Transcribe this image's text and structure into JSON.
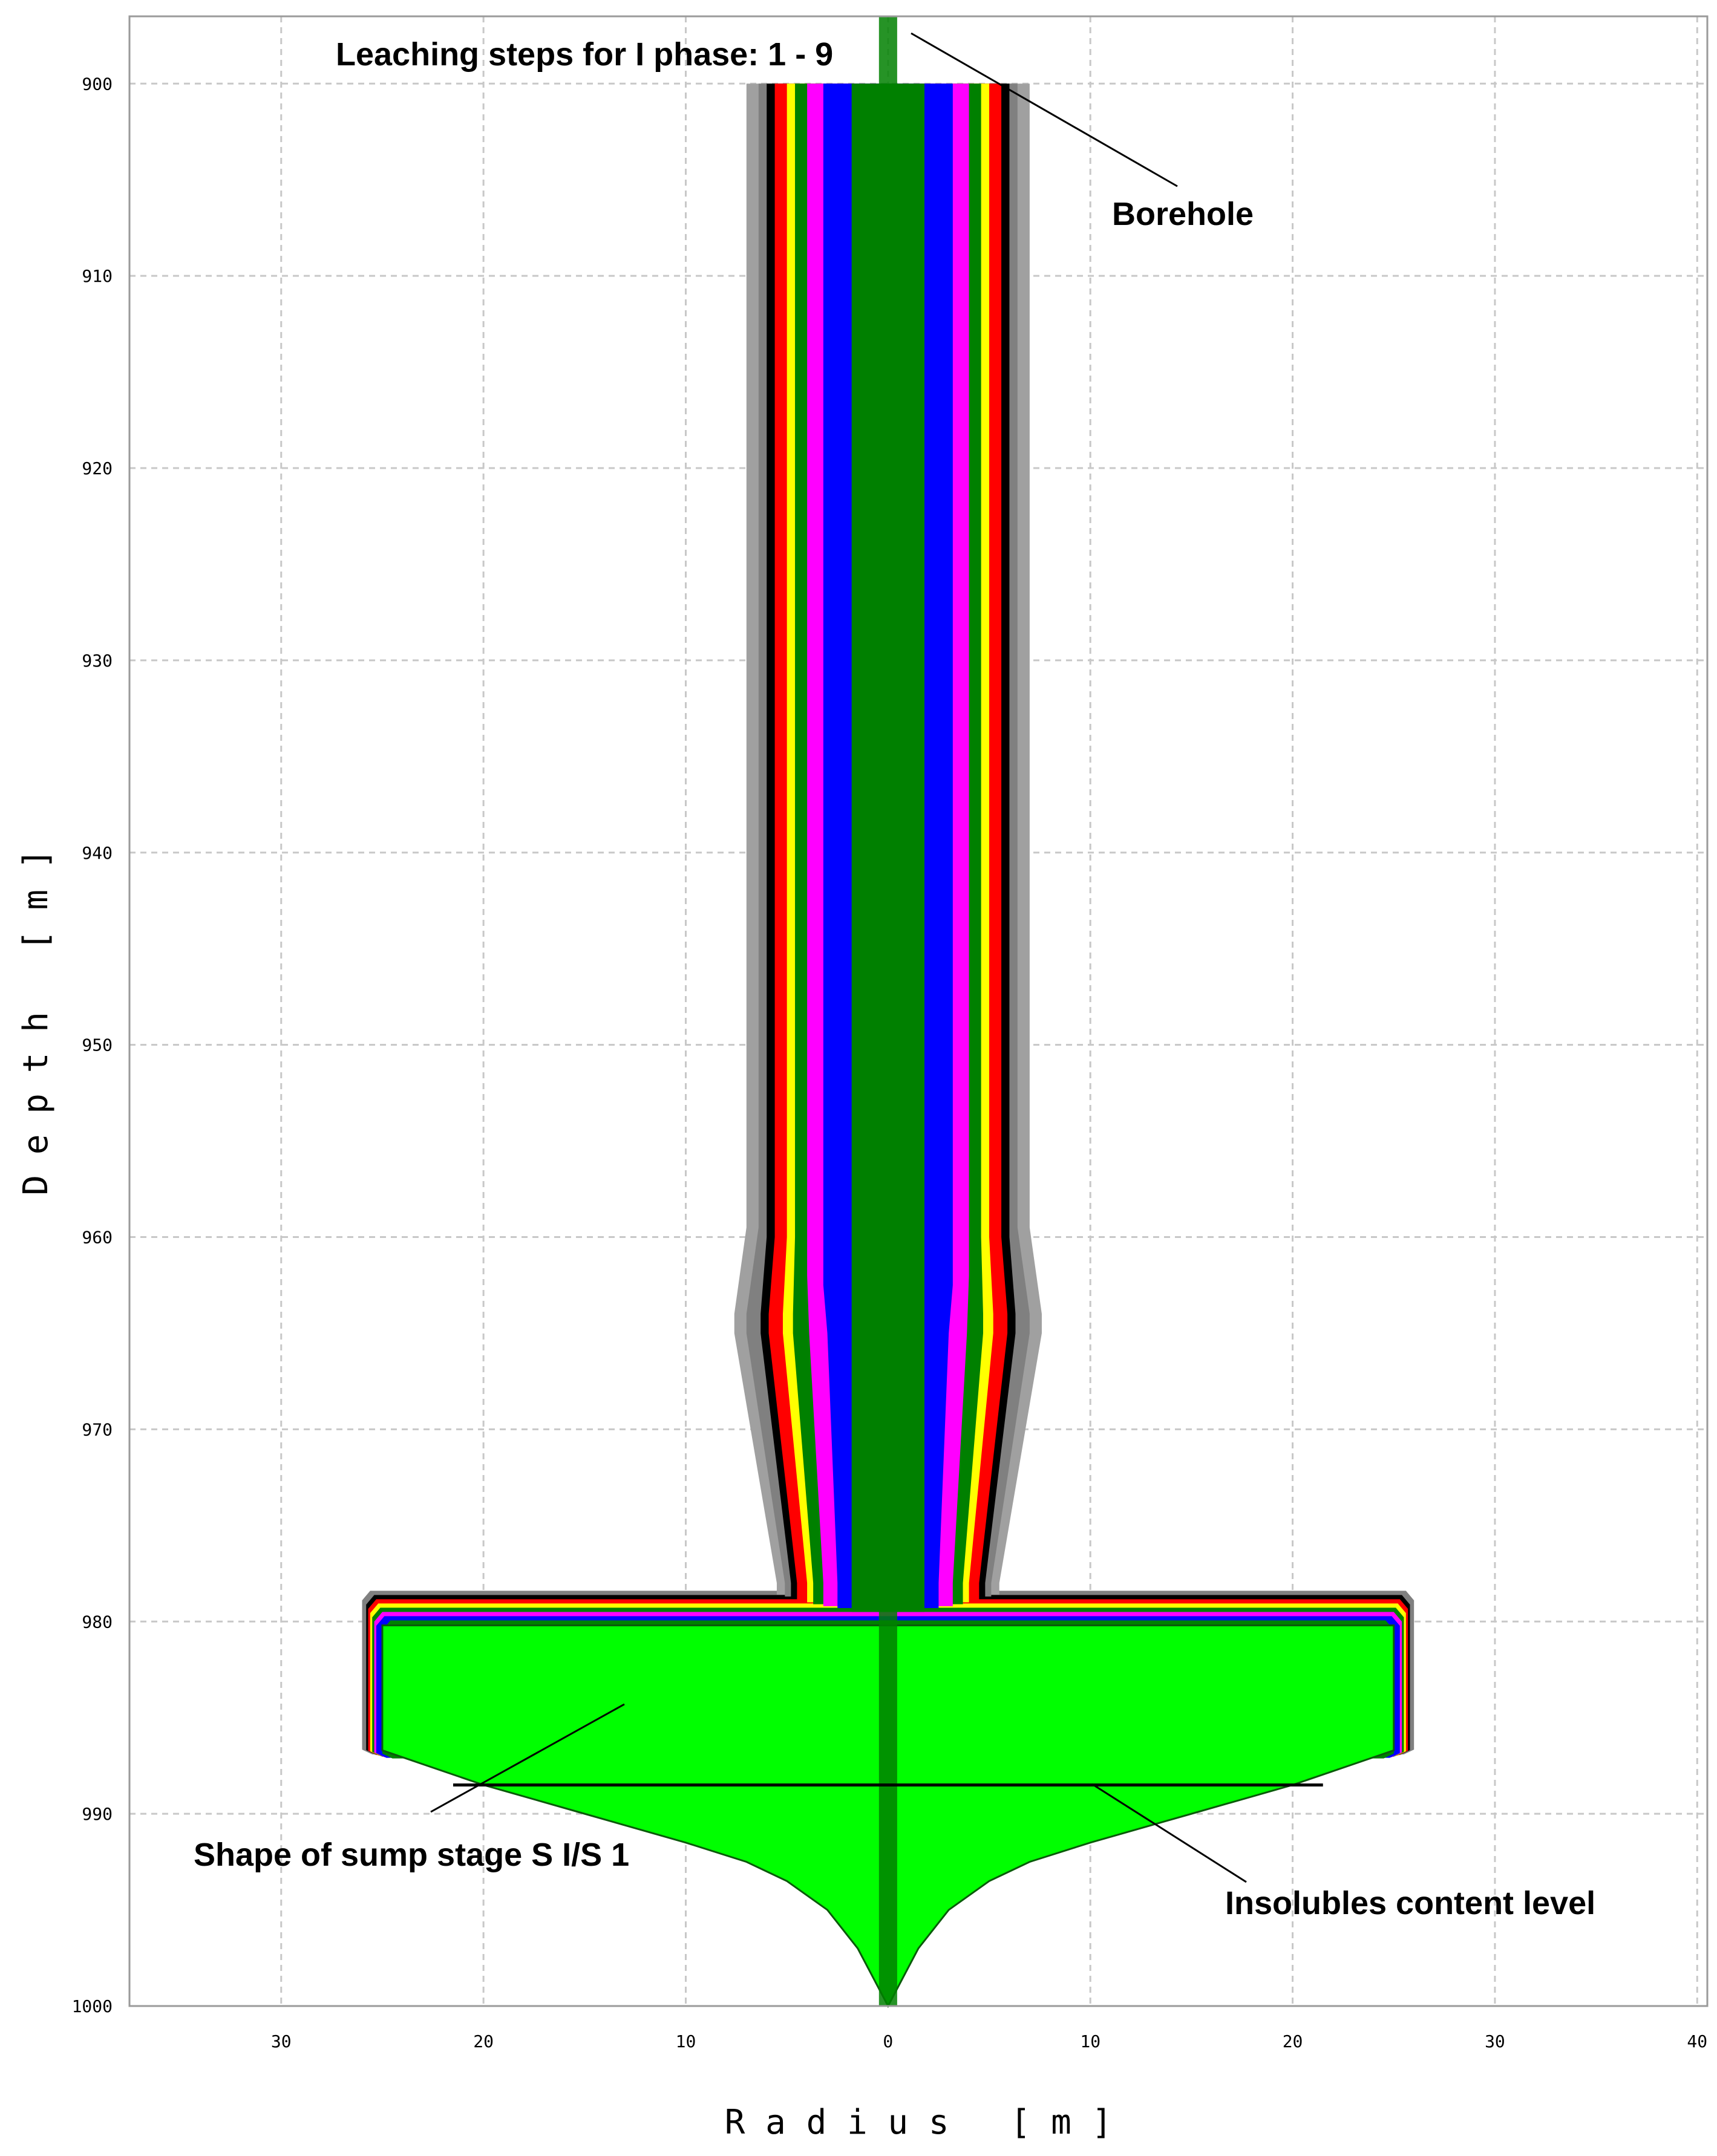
{
  "chart_data": {
    "type": "area",
    "title": "",
    "xlabel": "R a d i u s   [ m ]",
    "ylabel": "D e p t h   [ m ]",
    "xlim": [
      -37.5,
      40.5
    ],
    "ylim": [
      896.5,
      1000
    ],
    "y_inverted": true,
    "grid": true,
    "x_ticks": [
      -30,
      -20,
      -10,
      0,
      10,
      20,
      30,
      40
    ],
    "x_tick_labels": [
      "30",
      "20",
      "10",
      "0",
      "10",
      "20",
      "30",
      "40"
    ],
    "y_ticks": [
      900,
      910,
      920,
      930,
      940,
      950,
      960,
      970,
      980,
      990,
      1000
    ],
    "y_tick_labels": [
      "900",
      "910",
      "920",
      "930",
      "940",
      "950",
      "960",
      "970",
      "980",
      "990",
      "1000"
    ],
    "layer_colors": [
      "#008000",
      "#0000ff",
      "#ff00ff",
      "#008000",
      "#ffff00",
      "#ff0000",
      "#000000",
      "#808080",
      "#a0a0a0"
    ],
    "upper_cavern_layers": [
      {
        "color": "#a0a0a0",
        "profile": [
          [
            900,
            7.0
          ],
          [
            959.5,
            7.0
          ],
          [
            964,
            7.6
          ],
          [
            965,
            7.6
          ],
          [
            978,
            5.5
          ],
          [
            978.6,
            5.5
          ]
        ]
      },
      {
        "color": "#808080",
        "profile": [
          [
            900,
            6.4
          ],
          [
            959.5,
            6.4
          ],
          [
            964,
            7.0
          ],
          [
            965,
            7.0
          ],
          [
            978,
            5.1
          ],
          [
            978.7,
            5.1
          ]
        ]
      },
      {
        "color": "#000000",
        "profile": [
          [
            900,
            6.0
          ],
          [
            960,
            6.0
          ],
          [
            964,
            6.3
          ],
          [
            965,
            6.3
          ],
          [
            978,
            4.8
          ],
          [
            978.8,
            4.8
          ]
        ]
      },
      {
        "color": "#ff0000",
        "profile": [
          [
            900,
            5.6
          ],
          [
            960,
            5.6
          ],
          [
            964,
            5.9
          ],
          [
            965,
            5.9
          ],
          [
            978,
            4.5
          ],
          [
            978.9,
            4.5
          ]
        ]
      },
      {
        "color": "#ffff00",
        "profile": [
          [
            900,
            5.0
          ],
          [
            960,
            5.0
          ],
          [
            964,
            5.2
          ],
          [
            965,
            5.2
          ],
          [
            978,
            4.0
          ],
          [
            979,
            4.0
          ]
        ]
      },
      {
        "color": "#008000",
        "profile": [
          [
            900,
            4.6
          ],
          [
            960,
            4.6
          ],
          [
            964,
            4.7
          ],
          [
            965,
            4.7
          ],
          [
            978,
            3.7
          ],
          [
            979.1,
            3.7
          ]
        ]
      },
      {
        "color": "#ff00ff",
        "profile": [
          [
            900,
            4.0
          ],
          [
            962,
            4.0
          ],
          [
            965,
            3.9
          ],
          [
            978,
            3.2
          ],
          [
            979.2,
            3.2
          ]
        ]
      },
      {
        "color": "#0000ff",
        "profile": [
          [
            900,
            3.2
          ],
          [
            962.5,
            3.2
          ],
          [
            965,
            3.0
          ],
          [
            978,
            2.5
          ],
          [
            979.3,
            2.5
          ]
        ]
      },
      {
        "color": "#008000",
        "profile": [
          [
            900,
            1.8
          ],
          [
            979.5,
            1.8
          ]
        ]
      }
    ],
    "sump_rims": [
      {
        "color": "#808080",
        "radius": 26.0
      },
      {
        "color": "#000000",
        "radius": 25.8
      },
      {
        "color": "#ff0000",
        "radius": 25.7
      },
      {
        "color": "#ffff00",
        "radius": 25.6
      },
      {
        "color": "#008000",
        "radius": 25.5
      },
      {
        "color": "#ff00ff",
        "radius": 25.4
      },
      {
        "color": "#0000ff",
        "radius": 25.3
      },
      {
        "color": "#008000",
        "radius": 25.0
      }
    ],
    "sump_shape": {
      "color": "#00ff00",
      "profile": [
        [
          980.2,
          25.0
        ],
        [
          986.7,
          25.0
        ],
        [
          988.5,
          20.0
        ],
        [
          990,
          15.0
        ],
        [
          991.5,
          10.0
        ],
        [
          992.5,
          7.0
        ],
        [
          993.5,
          5.0
        ],
        [
          995,
          3.0
        ],
        [
          997,
          1.5
        ],
        [
          999,
          0.5
        ],
        [
          1000,
          0
        ]
      ]
    },
    "borehole": {
      "color": "#008000",
      "radius": 0.45,
      "top": 896.5,
      "bottom": 1000
    },
    "insolubles_level": {
      "depth": 988.5,
      "color": "#000000"
    },
    "annotations": [
      {
        "text": "Leaching steps for I phase: 1 - 9"
      },
      {
        "text": "Borehole"
      },
      {
        "text": "Shape of sump stage S I/S 1"
      },
      {
        "text": "Insolubles content level"
      }
    ]
  }
}
